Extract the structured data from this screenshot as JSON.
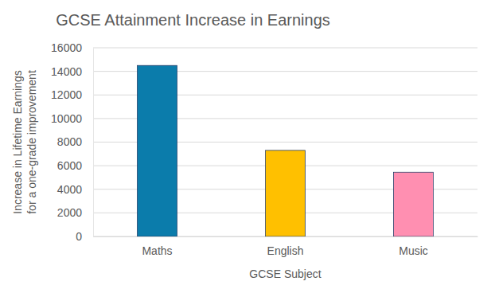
{
  "chart_data": {
    "type": "bar",
    "title": "GCSE Attainment Increase in Earnings",
    "x_label": "GCSE Subject",
    "y_label": "Increase in Lifetime Earnings for a one-grade improvement",
    "categories": [
      "Maths",
      "English",
      "Music"
    ],
    "values": [
      14500,
      7300,
      5450
    ],
    "colors": [
      "#0b7cab",
      "#ffc000",
      "#ff8fb1"
    ],
    "ylim": [
      0,
      16000
    ],
    "yticks": [
      0,
      2000,
      4000,
      6000,
      8000,
      10000,
      12000,
      14000,
      16000
    ],
    "grid": true
  }
}
